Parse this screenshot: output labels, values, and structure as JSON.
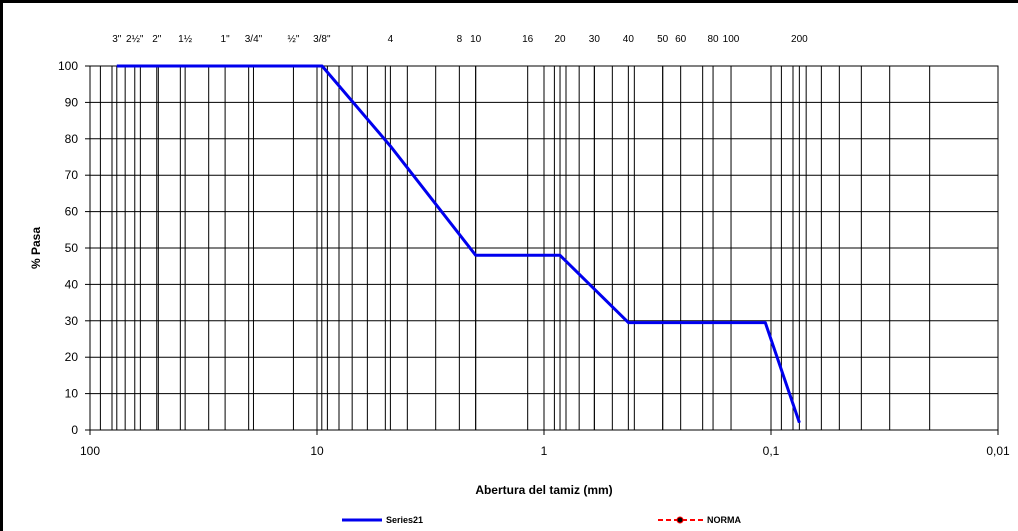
{
  "chart_data": {
    "type": "line",
    "x_scale": "log",
    "x_reversed": true,
    "xlim": [
      100,
      0.01
    ],
    "ylim": [
      0,
      100
    ],
    "xlabel": "Abertura del tamiz (mm)",
    "ylabel": "% Pasa",
    "x_tick_labels": [
      {
        "value": 100,
        "label": "100"
      },
      {
        "value": 10,
        "label": "10"
      },
      {
        "value": 1,
        "label": "1"
      },
      {
        "value": 0.1,
        "label": "0,1"
      },
      {
        "value": 0.01,
        "label": "0,01"
      }
    ],
    "y_ticks": [
      0,
      10,
      20,
      30,
      40,
      50,
      60,
      70,
      80,
      90,
      100
    ],
    "sieves": [
      {
        "label": "3\"",
        "opening": 76.2
      },
      {
        "label": "2½\"",
        "opening": 63.5
      },
      {
        "label": "2\"",
        "opening": 50.8
      },
      {
        "label": "1½",
        "opening": 38.1
      },
      {
        "label": "1\"",
        "opening": 25.4
      },
      {
        "label": "3/4\"",
        "opening": 19.05
      },
      {
        "label": "½\"",
        "opening": 12.7
      },
      {
        "label": "3/8\"",
        "opening": 9.525
      },
      {
        "label": "4",
        "opening": 4.75
      },
      {
        "label": "8",
        "opening": 2.36
      },
      {
        "label": "10",
        "opening": 2.0
      },
      {
        "label": "16",
        "opening": 1.18
      },
      {
        "label": "20",
        "opening": 0.85
      },
      {
        "label": "30",
        "opening": 0.6
      },
      {
        "label": "40",
        "opening": 0.425
      },
      {
        "label": "50",
        "opening": 0.3
      },
      {
        "label": "60",
        "opening": 0.25
      },
      {
        "label": "80",
        "opening": 0.18
      },
      {
        "label": "100",
        "opening": 0.15
      },
      {
        "label": "200",
        "opening": 0.075
      }
    ],
    "grid_x": [
      90,
      80,
      70,
      60,
      50,
      40,
      30,
      20,
      10,
      9,
      8,
      7,
      6,
      5,
      4,
      3,
      2,
      1,
      0.9,
      0.8,
      0.7,
      0.6,
      0.5,
      0.4,
      0.3,
      0.2,
      0.1,
      0.09,
      0.08,
      0.07,
      0.06,
      0.05,
      0.04,
      0.03,
      0.02
    ],
    "grid_y": true,
    "series": [
      {
        "name": "Series21",
        "color": "#0000ee",
        "x": [
          76.2,
          9.5,
          4.75,
          2.0,
          0.85,
          0.425,
          0.106,
          0.075
        ],
        "y": [
          100,
          100,
          78,
          48,
          48,
          29.5,
          29.5,
          2
        ]
      }
    ],
    "legend": {
      "placement": "bottom",
      "entries": [
        {
          "label": "Series21",
          "color": "#0000ee",
          "style": "solid"
        },
        {
          "label": "NORMA",
          "color": "#ff0000",
          "style": "dashed-marker"
        }
      ]
    }
  }
}
